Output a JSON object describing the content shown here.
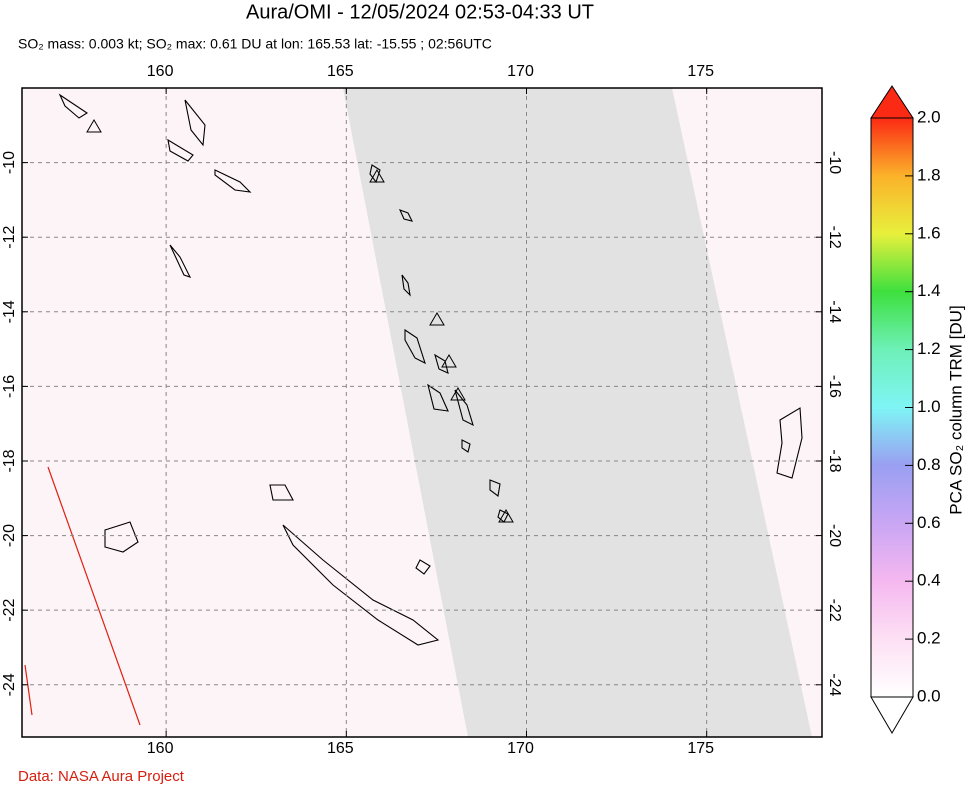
{
  "title": "Aura/OMI - 12/05/2024 02:53-04:33 UT",
  "subtitle": "SO₂ mass: 0.003 kt; SO₂ max: 0.61 DU at lon: 165.53 lat: -15.55 ; 02:56UTC",
  "map": {
    "xlim": [
      156,
      178.2
    ],
    "ylim": [
      -25.4,
      -8
    ],
    "xticks": [
      160,
      165,
      170,
      175
    ],
    "yticks": [
      -10,
      -12,
      -14,
      -16,
      -18,
      -20,
      -22,
      -24
    ],
    "grid": true
  },
  "colorbar": {
    "label": "PCA SO₂ column TRM [DU]",
    "clim": [
      0,
      2
    ],
    "ticks": [
      {
        "value": 0,
        "label": "0.0"
      },
      0.2,
      0.4,
      0.6,
      0.8,
      {
        "value": 1,
        "label": "1.0"
      },
      1.2,
      1.4,
      1.6,
      1.8,
      {
        "value": 2,
        "label": "2.0"
      }
    ]
  },
  "footer": "Data: NASA Aura Project"
}
